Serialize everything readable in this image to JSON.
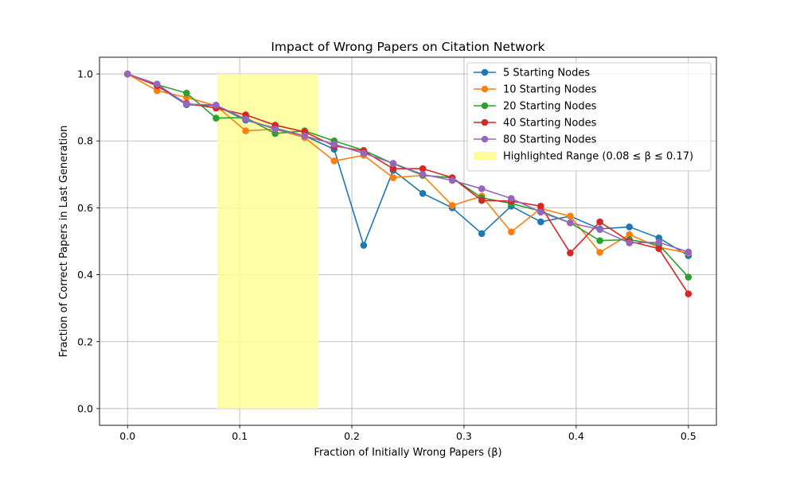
{
  "chart_data": {
    "type": "line",
    "title": "Impact of Wrong Papers on Citation Network",
    "xlabel": "Fraction of Initially Wrong Papers (β)",
    "ylabel": "Fraction of Correct Papers in Last Generation",
    "xlim": [
      -0.025,
      0.525
    ],
    "ylim": [
      -0.05,
      1.05
    ],
    "xticks": [
      "0.0",
      "0.1",
      "0.2",
      "0.3",
      "0.4",
      "0.5"
    ],
    "yticks": [
      "0.0",
      "0.2",
      "0.4",
      "0.6",
      "0.8",
      "1.0"
    ],
    "grid": true,
    "legend_position": "top-right",
    "x": [
      0.0,
      0.0263,
      0.0526,
      0.0789,
      0.1053,
      0.1316,
      0.1579,
      0.1842,
      0.2105,
      0.2368,
      0.2632,
      0.2895,
      0.3158,
      0.3421,
      0.3684,
      0.3947,
      0.4211,
      0.4474,
      0.4737,
      0.5
    ],
    "series": [
      {
        "name": "5 Starting Nodes",
        "color": "#1f77b4",
        "values": [
          1.0,
          0.965,
          0.908,
          0.905,
          0.862,
          0.838,
          0.815,
          0.775,
          0.488,
          0.712,
          0.643,
          0.6,
          0.523,
          0.605,
          0.558,
          0.575,
          0.537,
          0.543,
          0.51,
          0.457
        ]
      },
      {
        "name": "10 Starting Nodes",
        "color": "#ff7f0e",
        "values": [
          1.0,
          0.95,
          0.93,
          0.905,
          0.83,
          0.835,
          0.81,
          0.74,
          0.757,
          0.69,
          0.697,
          0.607,
          0.635,
          0.528,
          0.598,
          0.575,
          0.467,
          0.52,
          0.482,
          0.465
        ]
      },
      {
        "name": "20 Starting Nodes",
        "color": "#2ca02c",
        "values": [
          1.0,
          0.968,
          0.943,
          0.868,
          0.87,
          0.822,
          0.83,
          0.8,
          0.772,
          0.732,
          0.697,
          0.69,
          0.63,
          0.613,
          0.59,
          0.555,
          0.502,
          0.505,
          0.49,
          0.393
        ]
      },
      {
        "name": "40 Starting Nodes",
        "color": "#d62728",
        "values": [
          1.0,
          0.965,
          0.912,
          0.898,
          0.878,
          0.847,
          0.827,
          0.785,
          0.77,
          0.717,
          0.717,
          0.69,
          0.622,
          0.62,
          0.605,
          0.465,
          0.558,
          0.5,
          0.478,
          0.343
        ]
      },
      {
        "name": "80 Starting Nodes",
        "color": "#9467bd",
        "values": [
          1.0,
          0.97,
          0.91,
          0.907,
          0.865,
          0.835,
          0.815,
          0.79,
          0.763,
          0.733,
          0.7,
          0.682,
          0.657,
          0.628,
          0.587,
          0.555,
          0.535,
          0.495,
          0.497,
          0.468
        ]
      }
    ],
    "highlight": {
      "label": "Highlighted Range (0.08 ≤ β ≤ 0.17)",
      "x_range": [
        0.08,
        0.17
      ],
      "y_range": [
        0.0,
        1.0
      ],
      "color": "#ffff99"
    }
  }
}
